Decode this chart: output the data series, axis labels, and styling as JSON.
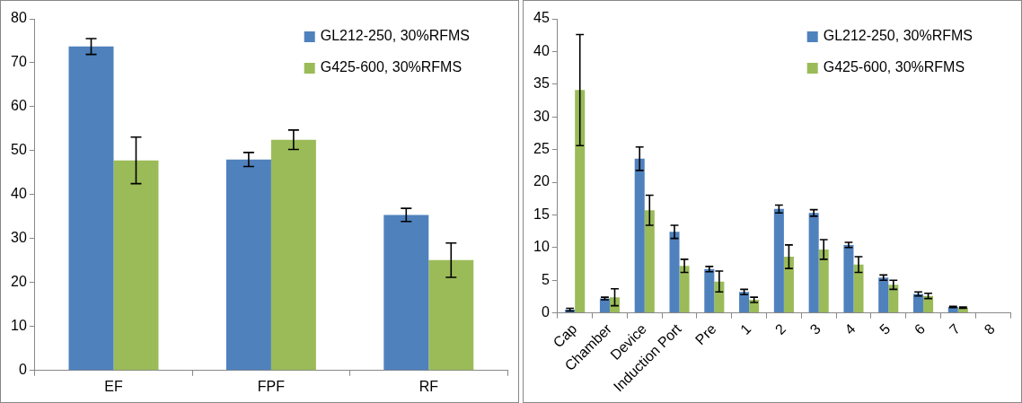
{
  "chart_data": [
    {
      "type": "bar",
      "categories": [
        "EF",
        "FPF",
        "RF"
      ],
      "series": [
        {
          "name": "GL212-250, 30%RFMS",
          "color": "#4f81bd",
          "values": [
            73.7,
            48.0,
            35.4
          ],
          "errors": [
            1.8,
            1.6,
            1.5
          ]
        },
        {
          "name": "G425-600, 30%RFMS",
          "color": "#9bbb59",
          "values": [
            47.8,
            52.5,
            25.1
          ],
          "errors": [
            5.3,
            2.2,
            3.9
          ]
        }
      ],
      "ylim": [
        0,
        80
      ],
      "yticks": [
        0,
        10,
        20,
        30,
        40,
        50,
        60,
        70,
        80
      ],
      "grid": false,
      "legend": "top right"
    },
    {
      "type": "bar",
      "categories": [
        "Cap",
        "Chamber",
        "Device",
        "Induction Port",
        "Pre",
        "1",
        "2",
        "3",
        "4",
        "5",
        "6",
        "7",
        "8"
      ],
      "series": [
        {
          "name": "GL212-250, 30%RFMS",
          "color": "#4f81bd",
          "values": [
            0.5,
            2.2,
            23.6,
            12.4,
            6.7,
            3.2,
            15.9,
            15.3,
            10.4,
            5.4,
            2.9,
            0.9,
            null
          ],
          "errors": [
            0.2,
            0.2,
            1.8,
            1.0,
            0.4,
            0.4,
            0.6,
            0.5,
            0.4,
            0.4,
            0.3,
            0.1,
            null
          ]
        },
        {
          "name": "G425-600, 30%RFMS",
          "color": "#9bbb59",
          "values": [
            34.1,
            2.4,
            15.7,
            7.2,
            4.8,
            2.0,
            8.6,
            9.7,
            7.4,
            4.3,
            2.6,
            0.8,
            null
          ],
          "errors": [
            8.5,
            1.3,
            2.3,
            1.0,
            1.6,
            0.4,
            1.8,
            1.5,
            1.2,
            0.7,
            0.4,
            0.1,
            null
          ]
        }
      ],
      "ylim": [
        0,
        45
      ],
      "yticks": [
        0,
        5,
        10,
        15,
        20,
        25,
        30,
        35,
        40,
        45
      ],
      "grid": false,
      "legend": "top right"
    }
  ]
}
